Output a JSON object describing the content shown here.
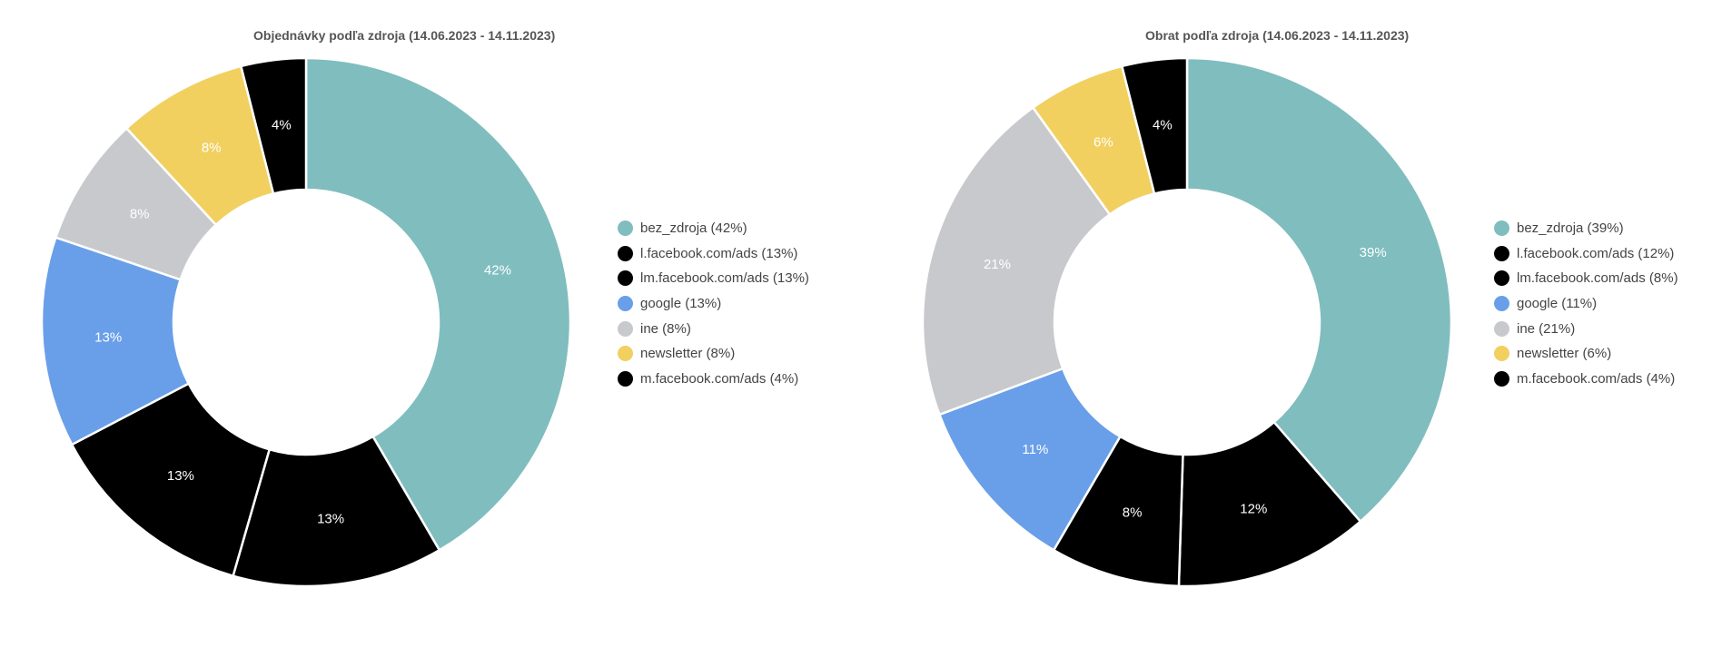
{
  "colors": {
    "bez_zdroja": "#80bdbf",
    "black": "#000000",
    "google": "#699fe9",
    "ine": "#c8c9cc",
    "newsletter": "#f1d060"
  },
  "chart_data": [
    {
      "type": "pie",
      "title": "Objednávky podľa zdroja (14.06.2023 - 14.11.2023)",
      "donut": true,
      "legend_position": "right",
      "slices": [
        {
          "label": "bez_zdroja",
          "value": 42,
          "color": "#80bdbf",
          "legend": "bez_zdroja (42%)",
          "data_label": "42%"
        },
        {
          "label": "l.facebook.com/ads",
          "value": 13,
          "color": "#000000",
          "legend": "l.facebook.com/ads (13%)",
          "data_label": "13%"
        },
        {
          "label": "lm.facebook.com/ads",
          "value": 13,
          "color": "#000000",
          "legend": "lm.facebook.com/ads (13%)",
          "data_label": "13%"
        },
        {
          "label": "google",
          "value": 13,
          "color": "#699fe9",
          "legend": "google (13%)",
          "data_label": "13%"
        },
        {
          "label": "ine",
          "value": 8,
          "color": "#c8c9cc",
          "legend": "ine (8%)",
          "data_label": "8%"
        },
        {
          "label": "newsletter",
          "value": 8,
          "color": "#f1d060",
          "legend": "newsletter (8%)",
          "data_label": "8%"
        },
        {
          "label": "m.facebook.com/ads",
          "value": 4,
          "color": "#000000",
          "legend": "m.facebook.com/ads (4%)",
          "data_label": "4%"
        }
      ]
    },
    {
      "type": "pie",
      "title": "Obrat podľa zdroja (14.06.2023 - 14.11.2023)",
      "donut": true,
      "legend_position": "right",
      "slices": [
        {
          "label": "bez_zdroja",
          "value": 39,
          "color": "#80bdbf",
          "legend": "bez_zdroja (39%)",
          "data_label": "39%"
        },
        {
          "label": "l.facebook.com/ads",
          "value": 12,
          "color": "#000000",
          "legend": "l.facebook.com/ads (12%)",
          "data_label": "12%"
        },
        {
          "label": "lm.facebook.com/ads",
          "value": 8,
          "color": "#000000",
          "legend": "lm.facebook.com/ads (8%)",
          "data_label": "8%"
        },
        {
          "label": "google",
          "value": 11,
          "color": "#699fe9",
          "legend": "google (11%)",
          "data_label": "11%"
        },
        {
          "label": "ine",
          "value": 21,
          "color": "#c8c9cc",
          "legend": "ine (21%)",
          "data_label": "21%"
        },
        {
          "label": "newsletter",
          "value": 6,
          "color": "#f1d060",
          "legend": "newsletter (6%)",
          "data_label": "6%"
        },
        {
          "label": "m.facebook.com/ads",
          "value": 4,
          "color": "#000000",
          "legend": "m.facebook.com/ads (4%)",
          "data_label": "4%"
        }
      ]
    }
  ]
}
